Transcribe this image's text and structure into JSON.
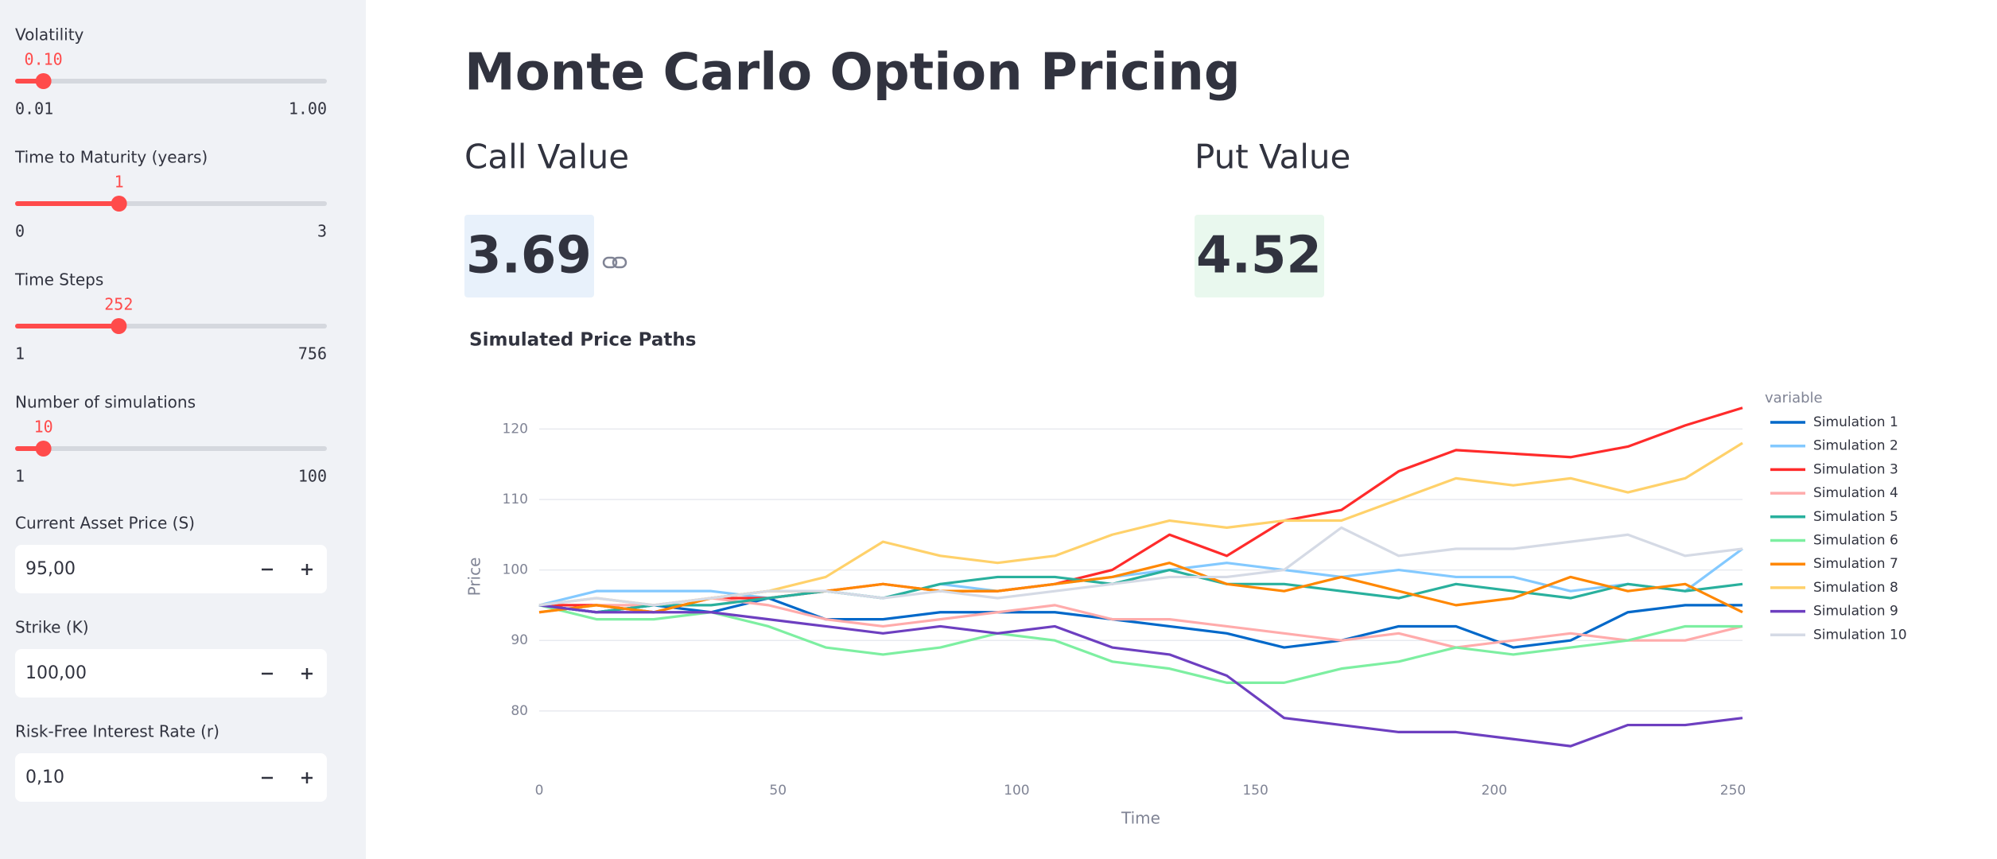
{
  "sidebar": {
    "sliders": [
      {
        "label": "Volatility",
        "value": "0.10",
        "min": "0.01",
        "max": "1.00"
      },
      {
        "label": "Time to Maturity (years)",
        "value": "1",
        "min": "0",
        "max": "3"
      },
      {
        "label": "Time Steps",
        "value": "252",
        "min": "1",
        "max": "756"
      },
      {
        "label": "Number of simulations",
        "value": "10",
        "min": "1",
        "max": "100"
      }
    ],
    "inputs": [
      {
        "label": "Current Asset Price (S)",
        "value": "95,00"
      },
      {
        "label": "Strike (K)",
        "value": "100,00"
      },
      {
        "label": "Risk-Free Interest Rate (r)",
        "value": "0,10"
      }
    ]
  },
  "header": {
    "title": "Monte Carlo Option Pricing"
  },
  "metrics": [
    {
      "label": "Call Value",
      "value": "3.69"
    },
    {
      "label": "Put Value",
      "value": "4.52"
    }
  ],
  "chart_data": {
    "type": "line",
    "title": "Simulated Price Paths",
    "x_label": "Time",
    "y_label": "Price",
    "legend_title": "variable",
    "x": [
      0,
      12,
      24,
      36,
      48,
      60,
      72,
      84,
      96,
      108,
      120,
      132,
      144,
      156,
      168,
      180,
      192,
      204,
      216,
      228,
      240,
      252
    ],
    "series": [
      {
        "name": "Simulation 1",
        "color": "#0068c9",
        "values": [
          95,
          94,
          95,
          94,
          96,
          93,
          93,
          94,
          94,
          94,
          93,
          92,
          91,
          89,
          90,
          92,
          92,
          89,
          90,
          94,
          95,
          95
        ]
      },
      {
        "name": "Simulation 2",
        "color": "#83c9ff",
        "values": [
          95,
          97,
          97,
          97,
          96,
          97,
          96,
          98,
          97,
          98,
          99,
          100,
          101,
          100,
          99,
          100,
          99,
          99,
          97,
          98,
          97,
          103
        ]
      },
      {
        "name": "Simulation 3",
        "color": "#ff2b2b",
        "values": [
          95,
          95,
          94,
          96,
          96,
          97,
          98,
          97,
          97,
          98,
          100,
          105,
          102,
          107,
          108.5,
          114,
          117,
          116.5,
          116,
          117.5,
          120.5,
          123
        ]
      },
      {
        "name": "Simulation 4",
        "color": "#ffabab",
        "values": [
          94,
          95,
          95,
          96,
          95,
          93,
          92,
          93,
          94,
          95,
          93,
          93,
          92,
          91,
          90,
          91,
          89,
          90,
          91,
          90,
          90,
          92
        ]
      },
      {
        "name": "Simulation 5",
        "color": "#29b09d",
        "values": [
          95,
          94,
          95,
          95,
          96,
          97,
          96,
          98,
          99,
          99,
          98,
          100,
          98,
          98,
          97,
          96,
          98,
          97,
          96,
          98,
          97,
          98
        ]
      },
      {
        "name": "Simulation 6",
        "color": "#7defa1",
        "values": [
          95,
          93,
          93,
          94,
          92,
          89,
          88,
          89,
          91,
          90,
          87,
          86,
          84,
          84,
          86,
          87,
          89,
          88,
          89,
          90,
          92,
          92
        ]
      },
      {
        "name": "Simulation 7",
        "color": "#ff8700",
        "values": [
          94,
          95,
          94,
          96,
          97,
          97,
          98,
          97,
          97,
          98,
          99,
          101,
          98,
          97,
          99,
          97,
          95,
          96,
          99,
          97,
          98,
          94
        ]
      },
      {
        "name": "Simulation 8",
        "color": "#ffd16a",
        "values": [
          95,
          96,
          95,
          96,
          97,
          99,
          104,
          102,
          101,
          102,
          105,
          107,
          106,
          107,
          107,
          110,
          113,
          112,
          113,
          111,
          113,
          118
        ]
      },
      {
        "name": "Simulation 9",
        "color": "#6d3fc0",
        "values": [
          95,
          94,
          94,
          94,
          93,
          92,
          91,
          92,
          91,
          92,
          89,
          88,
          85,
          79,
          78,
          77,
          77,
          76,
          75,
          78,
          78,
          79
        ]
      },
      {
        "name": "Simulation 10",
        "color": "#d5dae5",
        "values": [
          95,
          96,
          95,
          96,
          97,
          97,
          96,
          97,
          96,
          97,
          98,
          99,
          99,
          100,
          106,
          102,
          103,
          103,
          104,
          105,
          102,
          103
        ]
      }
    ],
    "xlim": [
      0,
      252
    ],
    "xticks": [
      0,
      50,
      100,
      150,
      200,
      250
    ],
    "ylim": [
      74,
      125
    ],
    "yticks": [
      80,
      90,
      100,
      110,
      120
    ],
    "grid": true
  }
}
